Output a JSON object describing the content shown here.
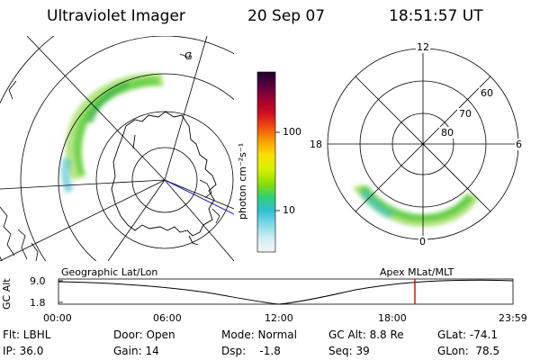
{
  "header": {
    "instrument": "Ultraviolet Imager",
    "date": "20 Sep 07",
    "time": "18:51:57 UT"
  },
  "colorbar": {
    "unit": "photon cm⁻²s⁻¹",
    "ticks": [
      "100",
      "10"
    ],
    "colors": [
      "#200030",
      "#5a0040",
      "#a00030",
      "#d01020",
      "#f05010",
      "#f8a000",
      "#f8e000",
      "#d8f000",
      "#90e000",
      "#30d070",
      "#30c0d0",
      "#80d8e8",
      "#d0eef4",
      "#f4f4f4"
    ]
  },
  "geo_panel": {
    "label": "Geographic Lat/Lon",
    "grid_label": "G"
  },
  "mag_panel": {
    "label": "Apex MLat/MLT",
    "mlt_labels": {
      "top": "12",
      "left": "18",
      "right": "6",
      "bottom": "0"
    },
    "lat_labels": [
      "60",
      "70",
      "80"
    ]
  },
  "altitude_plot": {
    "ylabel": "GC Alt",
    "yticks": [
      "9.0",
      "1.8"
    ],
    "xticks": [
      "00:00",
      "06:00",
      "12:00",
      "18:00",
      "23:59"
    ],
    "marker_color": "#e00000"
  },
  "info": {
    "row1": [
      {
        "name": "filter",
        "text": "Flt: LBHL"
      },
      {
        "name": "door",
        "text": "Door: Open"
      },
      {
        "name": "mode",
        "text": "Mode: Normal"
      },
      {
        "name": "gc-alt",
        "text": "GC Alt: 8.8 Re"
      },
      {
        "name": "glat",
        "text": "GLat: -74.1"
      }
    ],
    "row2": [
      {
        "name": "ip",
        "text": "IP: 36.0"
      },
      {
        "name": "gain",
        "text": "Gain: 14"
      },
      {
        "name": "dsp",
        "text": "Dsp:    -1.8"
      },
      {
        "name": "seq",
        "text": "Seq: 39"
      },
      {
        "name": "glon",
        "text": "GLon:  78.5"
      }
    ]
  }
}
